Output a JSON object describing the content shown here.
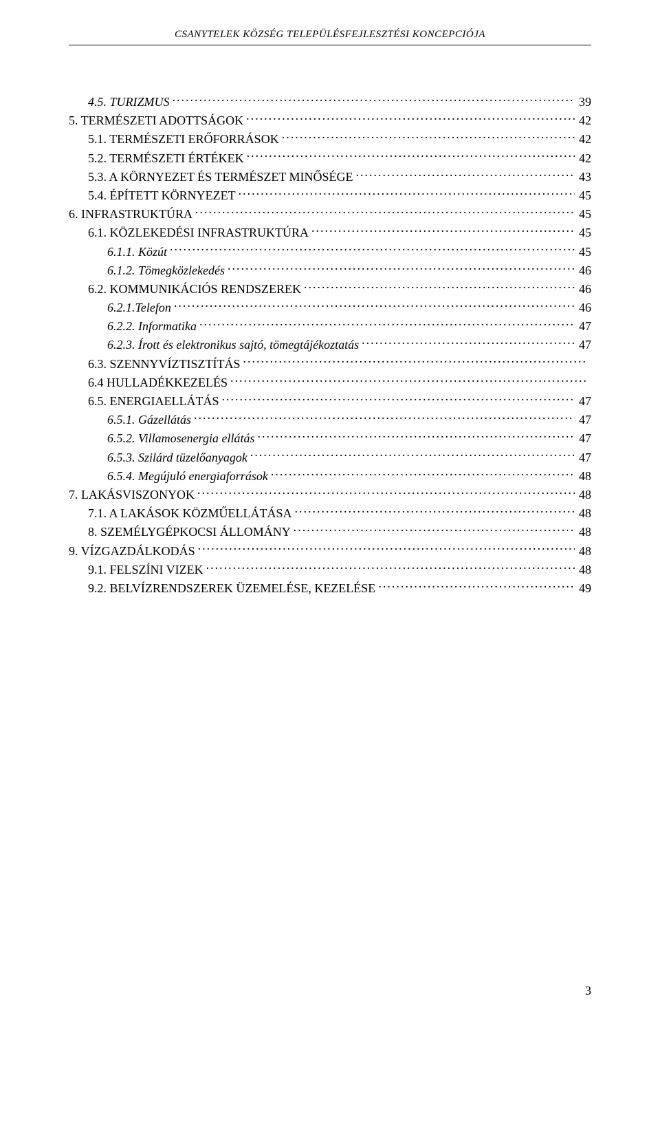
{
  "header": "CSANYTELEK KÖZSÉG TELEPÜLÉSFEJLESZTÉSI KONCEPCIÓJA",
  "toc": [
    {
      "indent": 1,
      "italic": true,
      "label": "4.5. TURIZMUS",
      "page": "39"
    },
    {
      "indent": 0,
      "italic": false,
      "label": "5. TERMÉSZETI ADOTTSÁGOK",
      "page": "42"
    },
    {
      "indent": 1,
      "italic": false,
      "label": "5.1. TERMÉSZETI ERŐFORRÁSOK",
      "page": "42"
    },
    {
      "indent": 1,
      "italic": false,
      "label": "5.2. TERMÉSZETI ÉRTÉKEK",
      "page": "42"
    },
    {
      "indent": 1,
      "italic": false,
      "label": "5.3. A KÖRNYEZET ÉS TERMÉSZET MINŐSÉGE",
      "page": "43"
    },
    {
      "indent": 1,
      "italic": false,
      "label": "5.4. ÉPÍTETT KÖRNYEZET",
      "page": "45"
    },
    {
      "indent": 0,
      "italic": false,
      "label": "6. INFRASTRUKTÚRA",
      "page": "45"
    },
    {
      "indent": 1,
      "italic": false,
      "label": "6.1. KÖZLEKEDÉSI INFRASTRUKTÚRA",
      "page": "45"
    },
    {
      "indent": 2,
      "italic": true,
      "label": "6.1.1. Közút",
      "page": "45"
    },
    {
      "indent": 2,
      "italic": true,
      "label": "6.1.2. Tömegközlekedés",
      "page": "46"
    },
    {
      "indent": 1,
      "italic": false,
      "label": "6.2. KOMMUNIKÁCIÓS RENDSZEREK",
      "page": "46"
    },
    {
      "indent": 2,
      "italic": true,
      "label": "6.2.1.Telefon",
      "page": "46"
    },
    {
      "indent": 2,
      "italic": true,
      "label": "6.2.2. Informatika",
      "page": "47"
    },
    {
      "indent": 2,
      "italic": true,
      "label": "6.2.3. Írott és elektronikus sajtó, tömegtájékoztatás",
      "page": "47"
    },
    {
      "indent": 1,
      "italic": false,
      "label": "6.3. SZENNYVÍZTISZTÍTÁS",
      "page": ""
    },
    {
      "indent": 1,
      "italic": false,
      "label": "6.4 HULLADÉKKEZELÉS",
      "page": ""
    },
    {
      "indent": 1,
      "italic": false,
      "label": "6.5. ENERGIAELLÁTÁS",
      "page": "47"
    },
    {
      "indent": 2,
      "italic": true,
      "label": "6.5.1. Gázellátás",
      "page": "47"
    },
    {
      "indent": 2,
      "italic": true,
      "label": "6.5.2. Villamosenergia ellátás",
      "page": "47"
    },
    {
      "indent": 2,
      "italic": true,
      "label": "6.5.3. Szilárd tüzelőanyagok",
      "page": "47"
    },
    {
      "indent": 2,
      "italic": true,
      "label": "6.5.4. Megújuló energiaforrások",
      "page": "48"
    },
    {
      "indent": 0,
      "italic": false,
      "label": "7. LAKÁSVISZONYOK",
      "page": "48"
    },
    {
      "indent": 1,
      "italic": false,
      "label": "7.1. A LAKÁSOK KÖZMŰELLÁTÁSA",
      "page": "48"
    },
    {
      "indent": 1,
      "italic": false,
      "label": "8. SZEMÉLYGÉPKOCSI ÁLLOMÁNY",
      "page": "48"
    },
    {
      "indent": 0,
      "italic": false,
      "label": "9. VÍZGAZDÁLKODÁS",
      "page": "48"
    },
    {
      "indent": 1,
      "italic": false,
      "label": "9.1. FELSZÍNI VIZEK",
      "page": "48"
    },
    {
      "indent": 1,
      "italic": false,
      "label": "9.2. BELVÍZRENDSZEREK ÜZEMELÉSE, KEZELÉSE",
      "page": "49"
    }
  ],
  "pageNumber": "3"
}
